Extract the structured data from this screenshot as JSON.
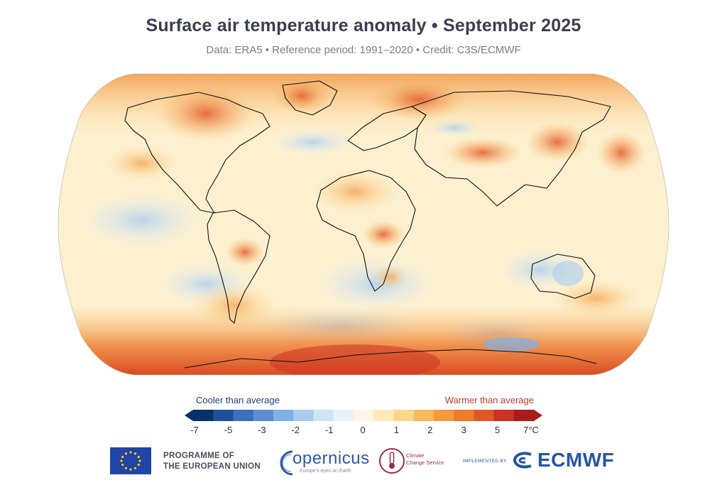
{
  "title": "Surface air temperature anomaly • September 2025",
  "subtitle": "Data: ERA5 • Reference period: 1991–2020 • Credit: C3S/ECMWF",
  "map": {
    "projection": "Robinson",
    "variable": "surface air temperature anomaly",
    "background_color": "#fdf0cf",
    "ocean_color": "#fbf4e2"
  },
  "legend": {
    "cool_label": "Cooler than average",
    "warm_label": "Warmer than average",
    "ticks": [
      "-7",
      "-5",
      "-3",
      "-2",
      "-1",
      "0",
      "1",
      "2",
      "3",
      "5",
      "7°C"
    ],
    "colors": [
      "#08306b",
      "#1f4f9c",
      "#3a6fc0",
      "#5a8fd6",
      "#7fb0e6",
      "#a8cdf0",
      "#cfe4f6",
      "#e8f2f8",
      "#fbf6e6",
      "#fdebb8",
      "#fcd68c",
      "#f8bb5a",
      "#f59a3c",
      "#ee7a2c",
      "#e05726",
      "#cc3322",
      "#a81c1c"
    ],
    "min_color": "#08306b",
    "max_color": "#a81c1c"
  },
  "footer": {
    "eu_line1": "PROGRAMME OF",
    "eu_line2": "THE EUROPEAN UNION",
    "copernicus": "opernicus",
    "copernicus_tagline": "Europe's eyes on Earth",
    "c3s_line1": "Climate",
    "c3s_line2": "Change Service",
    "implemented_by": "IMPLEMENTED BY",
    "ecmwf": "ECMWF"
  }
}
